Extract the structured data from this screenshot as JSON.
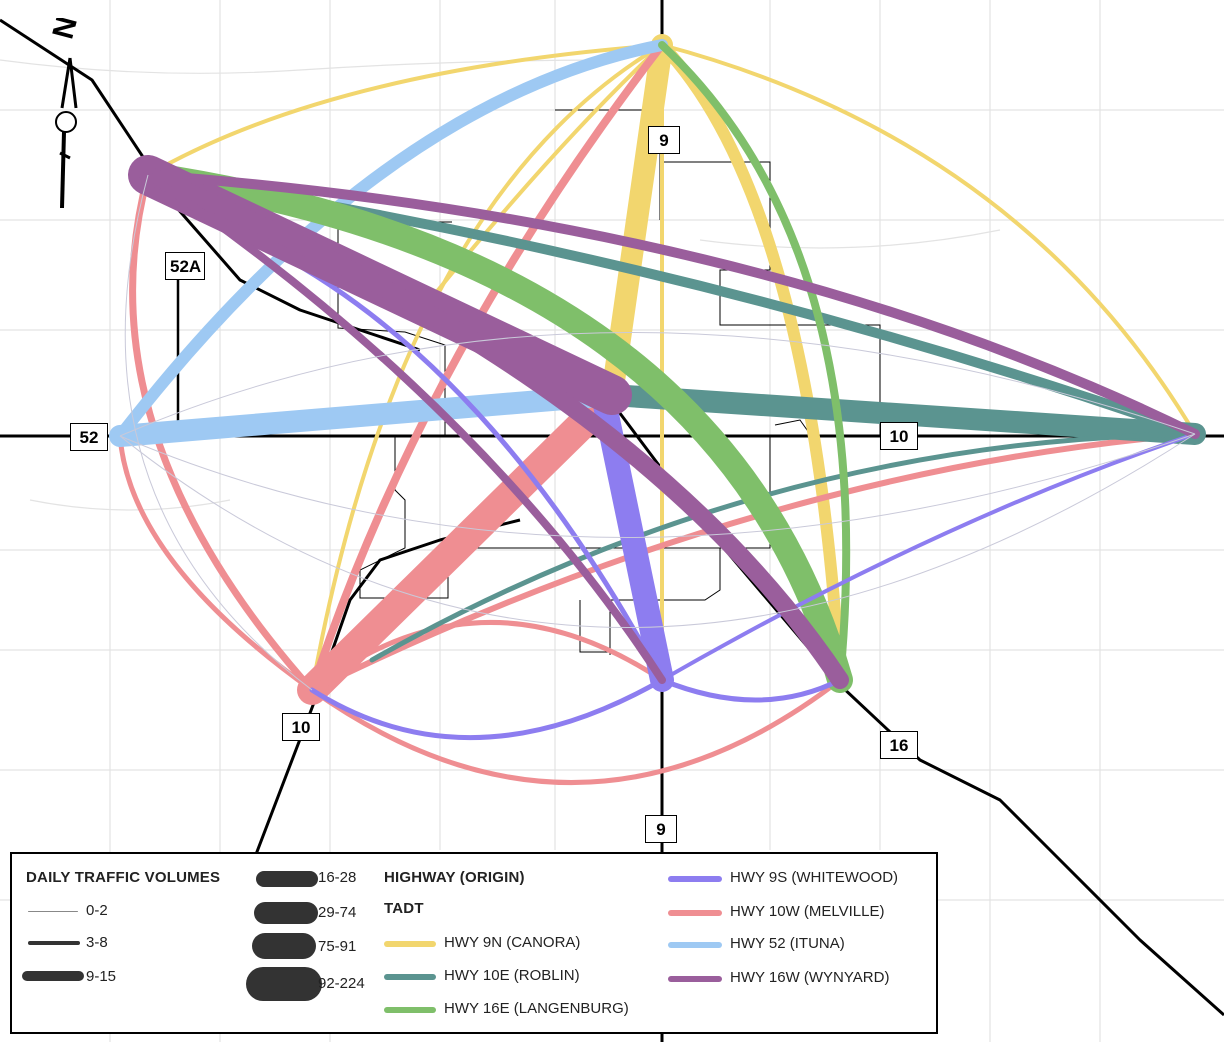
{
  "highway_labels": {
    "hwy9_north": "9",
    "hwy9_south": "9",
    "hwy52a": "52A",
    "hwy52": "52",
    "hwy10_east": "10",
    "hwy10_sw": "10",
    "hwy16": "16"
  },
  "north_arrow": {
    "letter": "N"
  },
  "legend": {
    "volumes_title": "DAILY TRAFFIC VOLUMES",
    "highway_title": "HIGHWAY (ORIGIN)",
    "tadt_label": "TADT",
    "volume_classes": [
      "0-2",
      "3-8",
      "9-15",
      "16-28",
      "29-74",
      "75-91",
      "92-224"
    ],
    "origins": [
      {
        "name": "HWY 9N (CANORA)",
        "color": "#f2d66e"
      },
      {
        "name": "HWY 10E (ROBLIN)",
        "color": "#5b9490"
      },
      {
        "name": "HWY 16E (LANGENBURG)",
        "color": "#7fbf6a"
      },
      {
        "name": "HWY 9S (WHITEWOOD)",
        "color": "#8d7df0"
      },
      {
        "name": "HWY 10W (MELVILLE)",
        "color": "#ef8e92"
      },
      {
        "name": "HWY 52 (ITUNA)",
        "color": "#9ec9f3"
      },
      {
        "name": "HWY 16W (WYNYARD)",
        "color": "#9a5e9c"
      }
    ]
  }
}
